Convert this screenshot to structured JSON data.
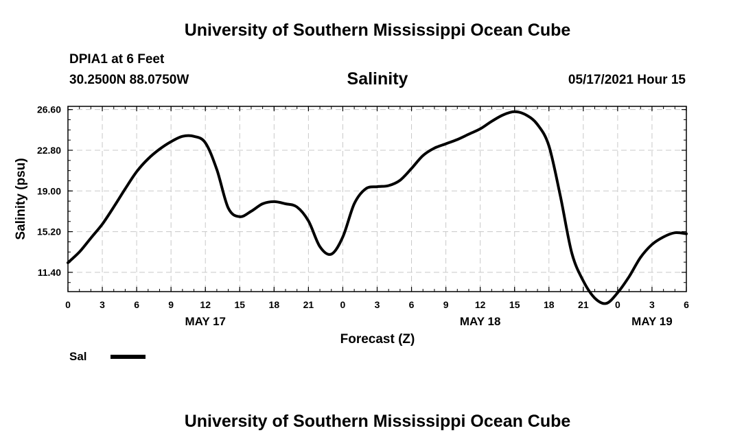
{
  "header": {
    "title": "University of Southern Mississippi Ocean Cube",
    "station": "DPIA1 at 6 Feet",
    "coordinates": "30.2500N  88.0750W",
    "subtitle": "Salinity",
    "timestamp": "05/17/2021 Hour 15"
  },
  "footer": {
    "title": "University of Southern Mississippi Ocean Cube"
  },
  "legend": {
    "label": "Sal",
    "placement": "bottom-left"
  },
  "colors": {
    "line": "#000000",
    "grid": "#c8c8c8",
    "background": "#ffffff"
  },
  "chart_data": {
    "type": "line",
    "title": "Salinity",
    "xlabel": "Forecast (Z)",
    "ylabel": "Salinity (psu)",
    "ylim": [
      9.6,
      26.9
    ],
    "xlim": [
      "2021-05-17T00:00Z",
      "2021-05-19T06:00Z"
    ],
    "x_tick_labels": [
      "0",
      "3",
      "6",
      "9",
      "12",
      "15",
      "18",
      "21",
      "0",
      "3",
      "6",
      "9",
      "12",
      "15",
      "18",
      "21",
      "0",
      "3",
      "6"
    ],
    "y_ticks": [
      11.4,
      15.2,
      19.0,
      22.8,
      26.6
    ],
    "y_tick_labels": [
      "11.40",
      "15.20",
      "19.00",
      "22.80",
      "26.60"
    ],
    "date_labels": [
      {
        "label": "MAY 17",
        "at": "2021-05-17T12:00Z"
      },
      {
        "label": "MAY 18",
        "at": "2021-05-18T12:00Z"
      },
      {
        "label": "MAY 19",
        "at": "2021-05-19T03:00Z"
      }
    ],
    "grid": true,
    "series": [
      {
        "name": "Sal",
        "x": [
          "2021-05-17T00:00Z",
          "2021-05-17T01:00Z",
          "2021-05-17T02:00Z",
          "2021-05-17T03:00Z",
          "2021-05-17T04:00Z",
          "2021-05-17T05:00Z",
          "2021-05-17T06:00Z",
          "2021-05-17T07:00Z",
          "2021-05-17T08:00Z",
          "2021-05-17T09:00Z",
          "2021-05-17T10:00Z",
          "2021-05-17T11:00Z",
          "2021-05-17T12:00Z",
          "2021-05-17T13:00Z",
          "2021-05-17T14:00Z",
          "2021-05-17T15:00Z",
          "2021-05-17T16:00Z",
          "2021-05-17T17:00Z",
          "2021-05-17T18:00Z",
          "2021-05-17T19:00Z",
          "2021-05-17T20:00Z",
          "2021-05-17T21:00Z",
          "2021-05-17T22:00Z",
          "2021-05-17T23:00Z",
          "2021-05-18T00:00Z",
          "2021-05-18T01:00Z",
          "2021-05-18T02:00Z",
          "2021-05-18T03:00Z",
          "2021-05-18T04:00Z",
          "2021-05-18T05:00Z",
          "2021-05-18T06:00Z",
          "2021-05-18T07:00Z",
          "2021-05-18T08:00Z",
          "2021-05-18T09:00Z",
          "2021-05-18T10:00Z",
          "2021-05-18T11:00Z",
          "2021-05-18T12:00Z",
          "2021-05-18T13:00Z",
          "2021-05-18T14:00Z",
          "2021-05-18T15:00Z",
          "2021-05-18T16:00Z",
          "2021-05-18T17:00Z",
          "2021-05-18T18:00Z",
          "2021-05-18T19:00Z",
          "2021-05-18T20:00Z",
          "2021-05-18T21:00Z",
          "2021-05-18T22:00Z",
          "2021-05-18T23:00Z",
          "2021-05-19T00:00Z",
          "2021-05-19T01:00Z",
          "2021-05-19T02:00Z",
          "2021-05-19T03:00Z",
          "2021-05-19T04:00Z",
          "2021-05-19T05:00Z",
          "2021-05-19T06:00Z"
        ],
        "values": [
          12.3,
          13.3,
          14.6,
          15.9,
          17.5,
          19.2,
          20.8,
          22.0,
          22.9,
          23.6,
          24.1,
          24.1,
          23.5,
          21.0,
          17.4,
          16.6,
          17.1,
          17.8,
          18.0,
          17.8,
          17.5,
          16.2,
          13.8,
          13.1,
          14.7,
          17.8,
          19.2,
          19.4,
          19.5,
          20.0,
          21.1,
          22.3,
          23.0,
          23.4,
          23.8,
          24.3,
          24.8,
          25.5,
          26.1,
          26.4,
          26.1,
          25.2,
          23.2,
          18.5,
          13.2,
          10.6,
          9.0,
          8.5,
          9.5,
          11.0,
          12.8,
          14.0,
          14.7,
          15.1,
          15.0
        ]
      }
    ]
  }
}
